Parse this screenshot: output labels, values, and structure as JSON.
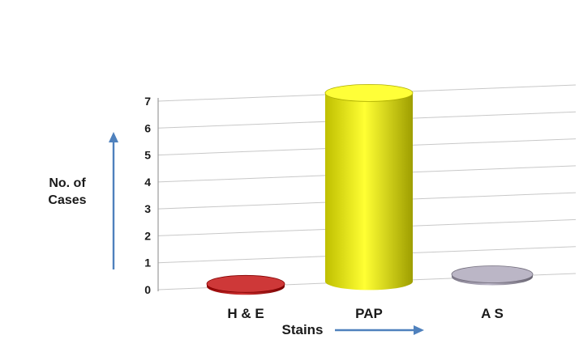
{
  "page": {
    "background": "#ffffff"
  },
  "chart_data": {
    "type": "bar",
    "subtype": "3d-cylinder",
    "title": "",
    "categories": [
      "H & E",
      "PAP",
      "A S"
    ],
    "values": [
      0,
      7,
      0
    ],
    "series": [
      {
        "name": "No. of Cases",
        "values": [
          0,
          7,
          0
        ]
      }
    ],
    "bar_colors": [
      "#c00000",
      "#ffff00",
      "#a8a1b6"
    ],
    "xlabel": "Stains",
    "ylabel": "No. of Cases",
    "ylabel_lines": [
      "No. of",
      "Cases"
    ],
    "ylim": [
      0,
      7
    ],
    "yticks": [
      0,
      1,
      2,
      3,
      4,
      5,
      6,
      7
    ],
    "grid": true,
    "legend": false,
    "axis_arrow_color": "#4f81bd",
    "gridline_color": "#c8c8c8",
    "axis_line_color": "#9b9b9b",
    "text_color": "#1a1a1a"
  }
}
